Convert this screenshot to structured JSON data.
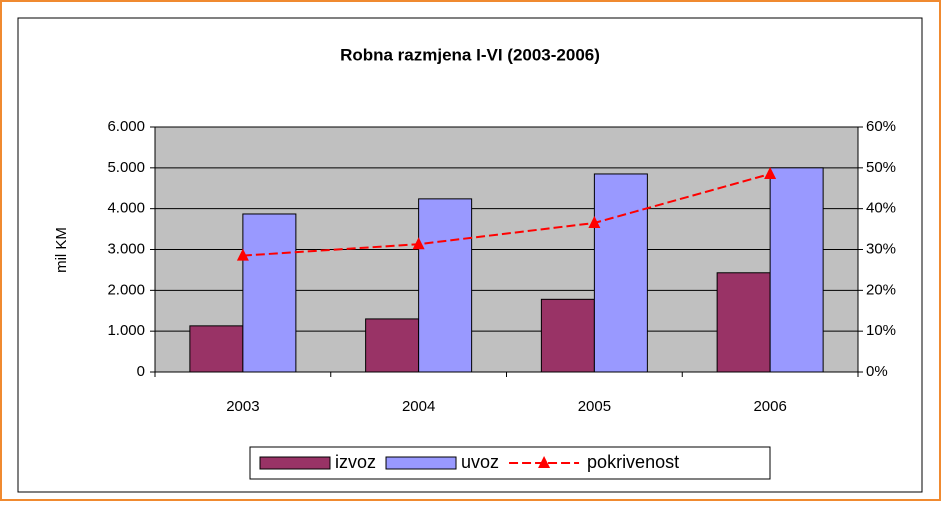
{
  "chart_data": {
    "type": "bar",
    "title": "Robna razmjena I-VI (2003-2006)",
    "y_label": "mil KM",
    "categories": [
      "2003",
      "2004",
      "2005",
      "2006"
    ],
    "series": [
      {
        "name": "izvoz",
        "color": "#993366",
        "values": [
          1130,
          1300,
          1780,
          2430
        ]
      },
      {
        "name": "uvoz",
        "color": "#9999ff",
        "values": [
          3870,
          4240,
          4850,
          5000
        ]
      },
      {
        "name": "pokrivenost",
        "color": "#ff0000",
        "type": "line",
        "axis": "y2",
        "values": [
          28.5,
          31.3,
          36.5,
          48.5
        ]
      }
    ],
    "ylim": [
      0,
      6000
    ],
    "yticks": [
      0,
      {
        "value": 1000,
        "label": "1.000"
      },
      {
        "value": 2000,
        "label": "2.000"
      },
      {
        "value": 3000,
        "label": "3.000"
      },
      {
        "value": 4000,
        "label": "4.000"
      },
      {
        "value": 5000,
        "label": "5.000"
      },
      {
        "value": 6000,
        "label": "6.000"
      }
    ],
    "y2lim": [
      0,
      60
    ],
    "y2ticks": [
      {
        "value": 0,
        "label": "0%"
      },
      {
        "value": 10,
        "label": "10%"
      },
      {
        "value": 20,
        "label": "20%"
      },
      {
        "value": 30,
        "label": "30%"
      },
      {
        "value": 40,
        "label": "40%"
      },
      {
        "value": 50,
        "label": "50%"
      },
      {
        "value": 60,
        "label": "60%"
      }
    ],
    "grid": true,
    "legend": "bottom"
  }
}
